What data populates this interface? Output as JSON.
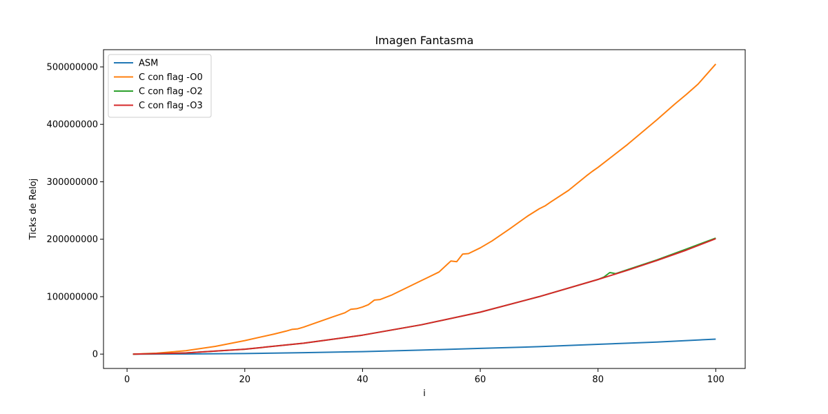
{
  "chart_data": {
    "type": "line",
    "title": "Imagen Fantasma",
    "xlabel": "i",
    "ylabel": "Ticks de Reloj",
    "xlim": [
      -4,
      105
    ],
    "ylim": [
      -25000000,
      530000000
    ],
    "xticks": [
      0,
      20,
      40,
      60,
      80,
      100
    ],
    "yticks": [
      0,
      100000000,
      200000000,
      300000000,
      400000000,
      500000000
    ],
    "ytick_labels": [
      "0",
      "100000000",
      "200000000",
      "300000000",
      "400000000",
      "500000000"
    ],
    "grid": false,
    "legend_position": "top-left",
    "series": [
      {
        "name": "ASM",
        "color": "#1f77b4",
        "x": [
          1,
          10,
          20,
          30,
          40,
          50,
          60,
          70,
          80,
          85,
          90,
          95,
          100
        ],
        "y": [
          0,
          250000,
          1000000,
          2500000,
          4300000,
          6900000,
          9900000,
          13000000,
          17000000,
          19000000,
          21000000,
          23500000,
          26000000
        ]
      },
      {
        "name": "C con flag -O0",
        "color": "#ff7f0e",
        "x": [
          1,
          5,
          10,
          15,
          20,
          25,
          27,
          28,
          29,
          30,
          35,
          37,
          38,
          39,
          40,
          41,
          42,
          43,
          45,
          50,
          51,
          53,
          55,
          56,
          57,
          58,
          60,
          62,
          65,
          68,
          70,
          71,
          72,
          75,
          78,
          79,
          80,
          85,
          90,
          93,
          95,
          97,
          100
        ],
        "y": [
          0,
          1500000,
          6000000,
          13500000,
          23500000,
          35000000,
          40000000,
          43000000,
          44000000,
          47000000,
          65000000,
          72000000,
          78000000,
          79000000,
          82000000,
          86000000,
          94000000,
          95000000,
          103000000,
          128000000,
          133000000,
          143000000,
          162000000,
          161000000,
          174000000,
          175000000,
          185000000,
          197000000,
          218000000,
          240000000,
          253000000,
          258000000,
          265000000,
          285000000,
          310000000,
          318000000,
          325000000,
          365000000,
          408000000,
          435000000,
          452000000,
          470000000,
          505000000
        ]
      },
      {
        "name": "C con flag -O2",
        "color": "#2ca02c",
        "x": [
          1,
          10,
          20,
          30,
          40,
          50,
          60,
          70,
          80,
          81,
          82,
          83,
          85,
          90,
          95,
          100
        ],
        "y": [
          0,
          2000000,
          8500000,
          19000000,
          33000000,
          51000000,
          73000000,
          100000000,
          130000000,
          134000000,
          142000000,
          140000000,
          147000000,
          164000000,
          183000000,
          202000000
        ]
      },
      {
        "name": "C con flag -O3",
        "color": "#d62728",
        "x": [
          1,
          10,
          20,
          30,
          40,
          50,
          60,
          70,
          80,
          85,
          90,
          95,
          100
        ],
        "y": [
          0,
          2000000,
          8500000,
          19000000,
          33000000,
          51000000,
          73000000,
          100000000,
          130000000,
          146000000,
          163000000,
          181000000,
          201000000
        ]
      }
    ]
  }
}
